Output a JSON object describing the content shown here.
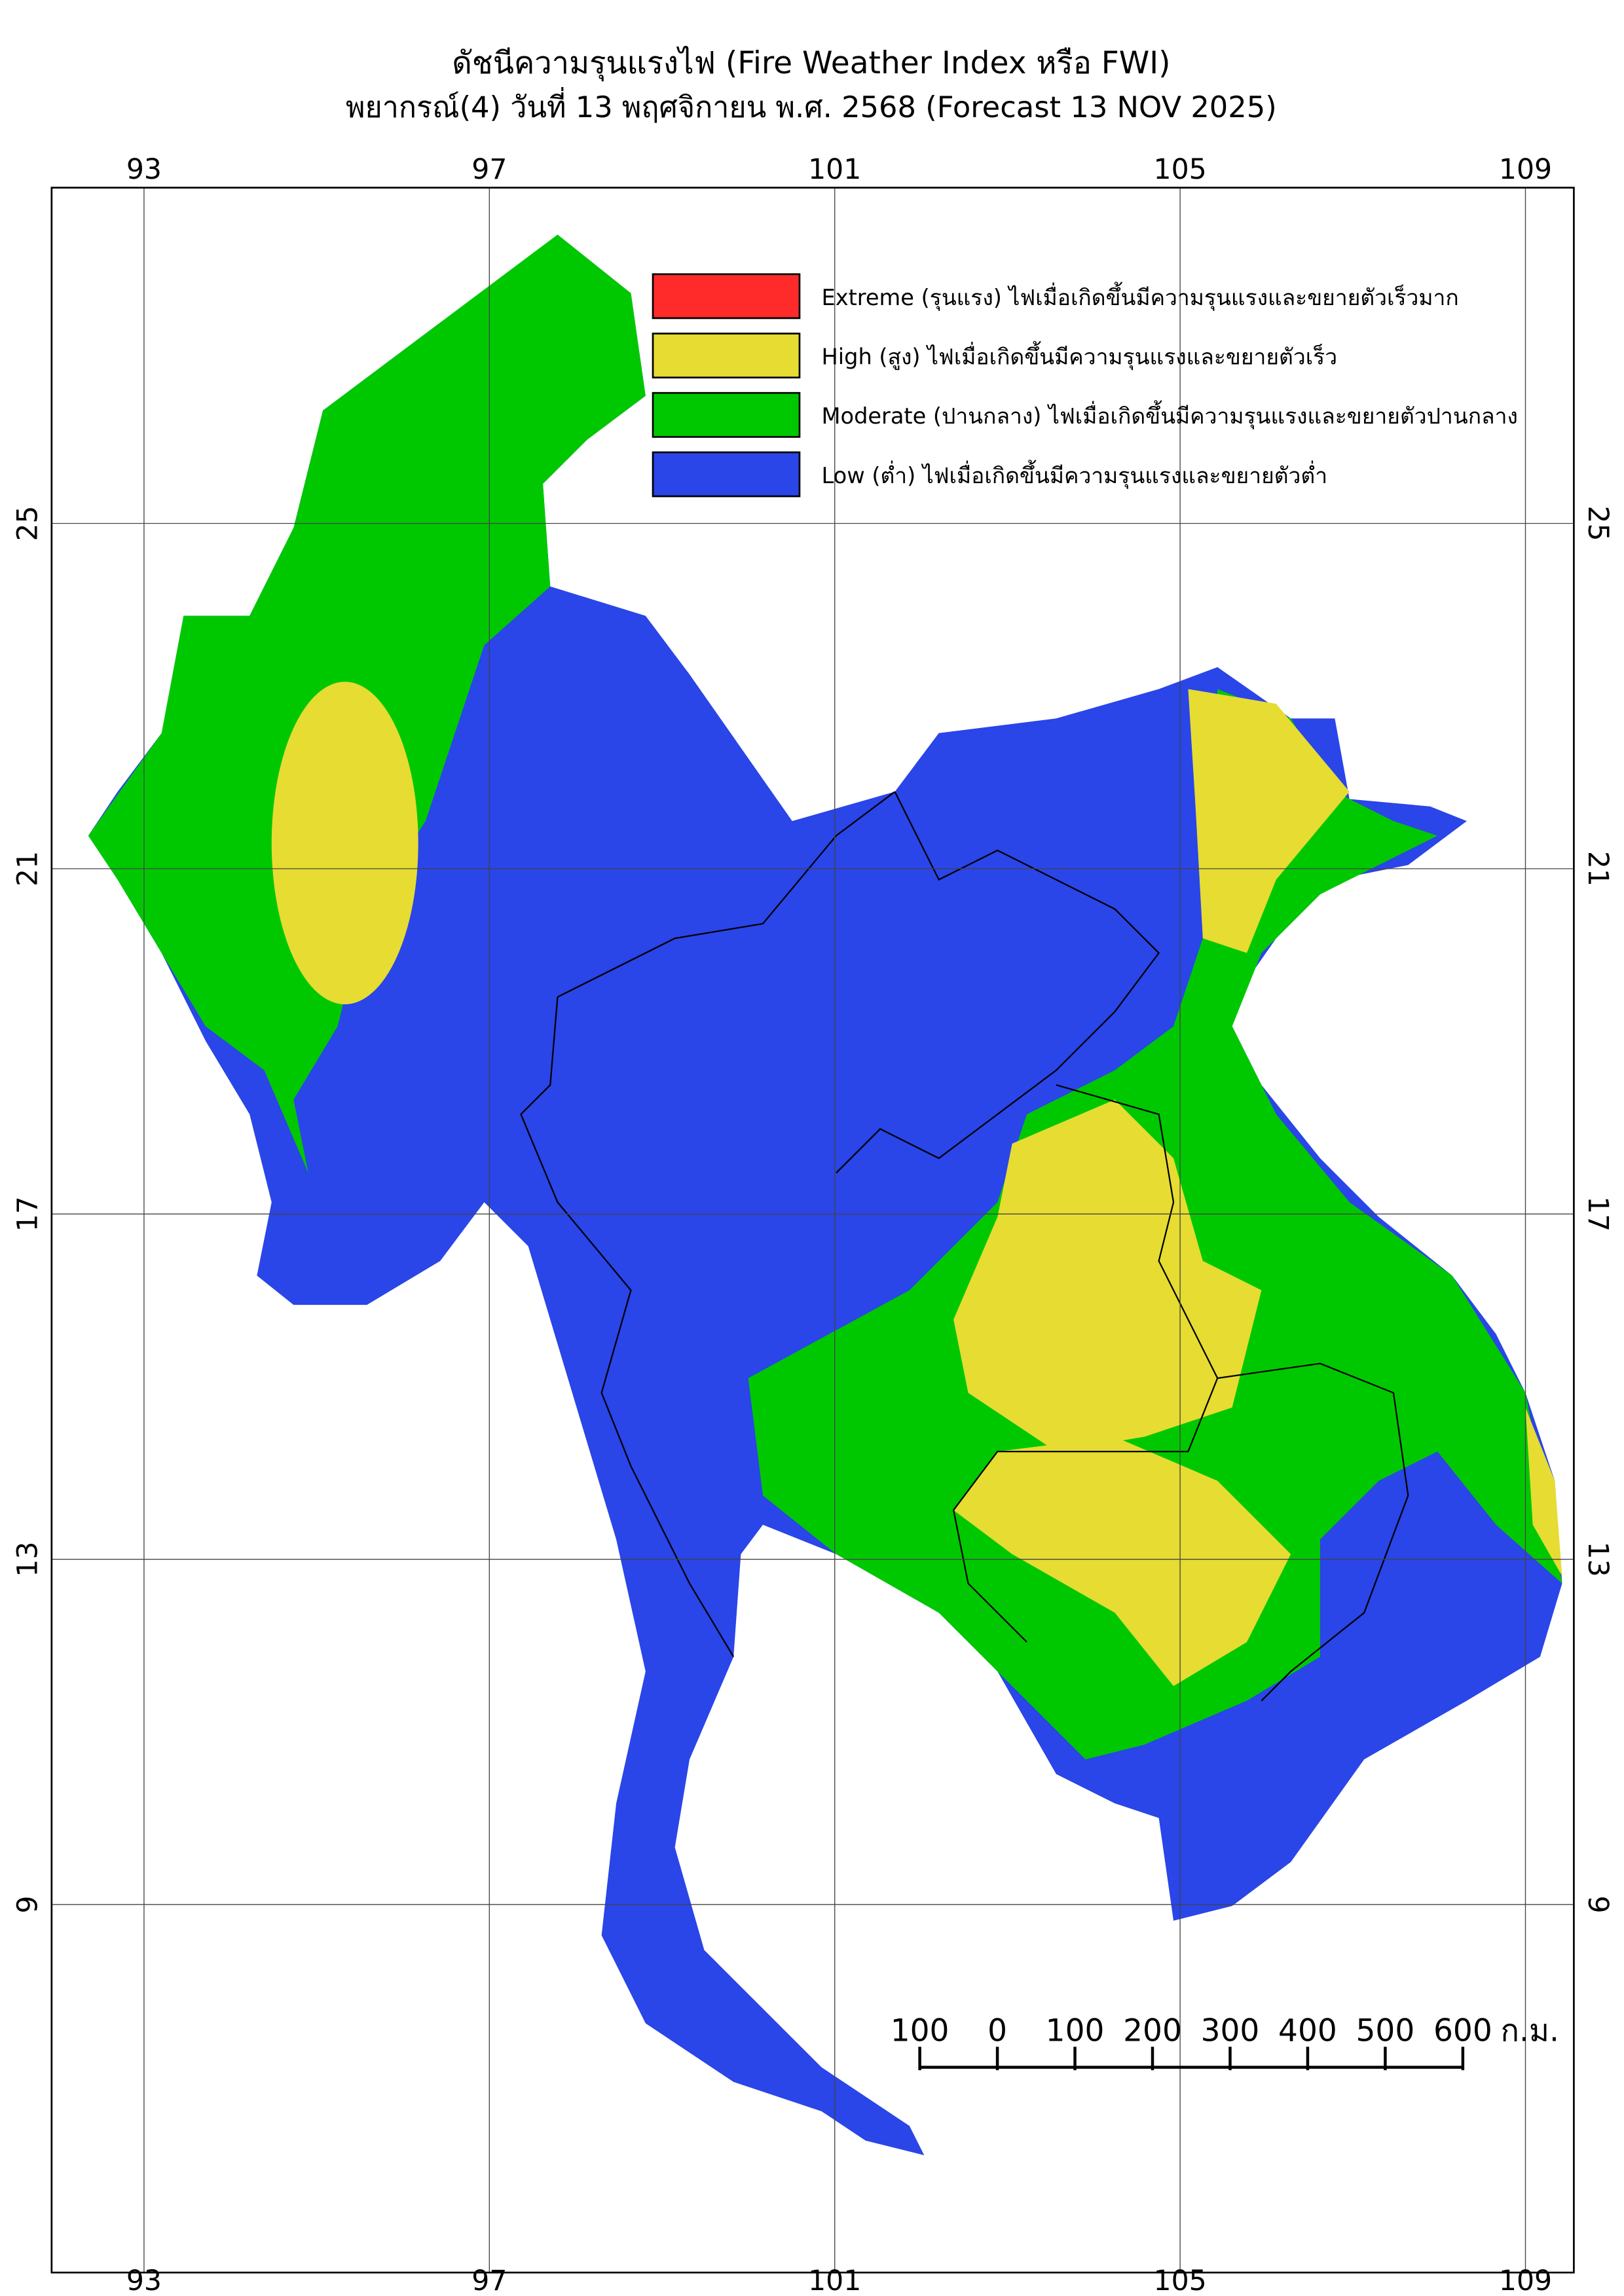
{
  "header": {
    "title": "ดัชนีความรุนแรงไฟ (Fire Weather Index หรือ FWI)",
    "subtitle": "พยากรณ์(4) วันที่ 13 พฤศจิกายน พ.ศ. 2568 (Forecast 13 NOV 2025)"
  },
  "axes": {
    "lon_ticks": [
      93,
      97,
      101,
      105,
      109
    ],
    "lat_ticks": [
      25,
      21,
      17,
      13,
      9
    ]
  },
  "legend": [
    {
      "label": "Extreme (รุนแรง) ไฟเมื่อเกิดขึ้นมีความรุนแรงและขยายตัวเร็วมาก",
      "color": "#ff2a2a"
    },
    {
      "label": "High (สูง) ไฟเมื่อเกิดขึ้นมีความรุนแรงและขยายตัวเร็ว",
      "color": "#e6dc32"
    },
    {
      "label": "Moderate (ปานกลาง) ไฟเมื่อเกิดขึ้นมีความรุนแรงและขยายตัวปานกลาง",
      "color": "#00c800"
    },
    {
      "label": "Low (ต่ำ) ไฟเมื่อเกิดขึ้นมีความรุนแรงและขยายตัวต่ำ",
      "color": "#2a45e8"
    }
  ],
  "scale_bar": {
    "labels": [
      100,
      0,
      100,
      200,
      300,
      400,
      500,
      600
    ],
    "unit": "ก.ม."
  }
}
